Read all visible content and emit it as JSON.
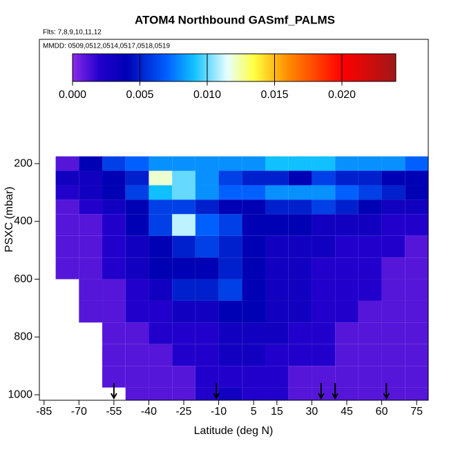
{
  "chart_data": {
    "type": "heatmap",
    "title": "ATOM4 Northbound GASmf_PALMS",
    "flights": "Flts: 7,8,9,10,11,12",
    "dates": "MMDD: 0509,0512,0514,0517,0518,0519",
    "xlabel": "Latitude (deg N)",
    "ylabel": "PSXC (mbar)",
    "xlim": [
      -87,
      80
    ],
    "ylim": [
      1019,
      -230
    ],
    "xticks": [
      -85,
      -70,
      -55,
      -40,
      -25,
      -10,
      5,
      15,
      30,
      45,
      60,
      75
    ],
    "yticks": [
      200,
      400,
      600,
      800,
      1000
    ],
    "lat_edges": [
      -80,
      -70,
      -60,
      -50,
      -40,
      -30,
      -20,
      -10,
      0,
      10,
      20,
      30,
      40,
      50,
      60,
      70,
      80
    ],
    "pres_edges": [
      175,
      225,
      275,
      325,
      375,
      450,
      525,
      600,
      675,
      750,
      825,
      900,
      975,
      1020
    ],
    "values": [
      [
        0.001,
        0.004,
        0.006,
        0.007,
        0.008,
        0.008,
        0.008,
        0.008,
        0.008,
        0.009,
        0.009,
        0.009,
        0.008,
        0.008,
        0.008,
        0.007
      ],
      [
        0.003,
        0.003,
        0.004,
        0.005,
        0.012,
        0.01,
        0.008,
        0.006,
        0.005,
        0.005,
        0.004,
        0.006,
        0.005,
        0.005,
        0.004,
        0.004
      ],
      [
        0.002,
        0.003,
        0.004,
        0.006,
        0.009,
        0.01,
        0.008,
        0.007,
        0.007,
        0.008,
        0.008,
        0.008,
        0.007,
        0.006,
        0.005,
        0.004
      ],
      [
        0.001,
        0.002,
        0.003,
        0.004,
        0.006,
        0.006,
        0.005,
        0.004,
        0.004,
        0.005,
        0.005,
        0.006,
        0.005,
        0.004,
        0.003,
        0.003
      ],
      [
        0.001,
        0.001,
        0.002,
        0.004,
        0.006,
        0.011,
        0.007,
        0.006,
        0.004,
        0.004,
        0.004,
        0.003,
        0.003,
        0.003,
        0.002,
        0.002
      ],
      [
        0.001,
        0.001,
        0.002,
        0.003,
        0.004,
        0.005,
        0.006,
        0.005,
        0.004,
        0.003,
        0.003,
        0.003,
        0.002,
        0.002,
        0.002,
        0.001
      ],
      [
        0.001,
        0.001,
        0.002,
        0.003,
        0.004,
        0.004,
        0.004,
        0.005,
        0.004,
        0.003,
        0.003,
        0.002,
        0.002,
        0.002,
        0.001,
        0.001
      ],
      [
        null,
        0.001,
        0.001,
        0.002,
        0.003,
        0.005,
        0.005,
        0.006,
        0.004,
        0.003,
        0.003,
        0.002,
        0.002,
        0.002,
        0.001,
        0.001
      ],
      [
        null,
        0.001,
        0.001,
        0.002,
        0.002,
        0.003,
        0.003,
        0.004,
        0.004,
        0.003,
        0.003,
        0.002,
        0.002,
        0.001,
        0.001,
        0.001
      ],
      [
        null,
        null,
        0.001,
        0.001,
        0.002,
        0.002,
        0.002,
        0.003,
        0.003,
        0.003,
        0.002,
        0.002,
        0.001,
        0.001,
        0.001,
        0.001
      ],
      [
        null,
        null,
        0.001,
        0.001,
        0.001,
        0.002,
        0.002,
        0.003,
        0.003,
        0.002,
        0.002,
        0.002,
        0.001,
        0.001,
        0.001,
        0.001
      ],
      [
        null,
        null,
        0.001,
        0.001,
        0.001,
        0.001,
        0.002,
        0.002,
        0.002,
        0.002,
        0.001,
        0.001,
        0.001,
        0.001,
        0.001,
        0.001
      ],
      [
        null,
        null,
        null,
        0.001,
        0.001,
        0.001,
        0.002,
        0.003,
        0.002,
        0.002,
        0.001,
        0.001,
        0.001,
        0.001,
        0.001,
        0.001
      ]
    ],
    "clim": [
      0,
      0.024
    ],
    "cticks": [
      {
        "value": 0,
        "label": "0.000"
      },
      {
        "value": 0.005,
        "label": "0.005"
      },
      {
        "value": 0.01,
        "label": "0.010"
      },
      {
        "value": 0.015,
        "label": "0.015"
      },
      {
        "value": 0.02,
        "label": "0.020"
      }
    ],
    "colormap": [
      {
        "value": 0,
        "color": "#8a2be6"
      },
      {
        "value": 0.002,
        "color": "#2200cc"
      },
      {
        "value": 0.004,
        "color": "#0000b4"
      },
      {
        "value": 0.007,
        "color": "#0060ff"
      },
      {
        "value": 0.009,
        "color": "#10c0ff"
      },
      {
        "value": 0.0115,
        "color": "#e8ffff"
      },
      {
        "value": 0.0135,
        "color": "#ffff40"
      },
      {
        "value": 0.016,
        "color": "#ff8c00"
      },
      {
        "value": 0.02,
        "color": "#ff0000"
      },
      {
        "value": 0.024,
        "color": "#a01818"
      }
    ],
    "arrows": [
      -55,
      -11,
      34,
      40,
      62
    ]
  }
}
